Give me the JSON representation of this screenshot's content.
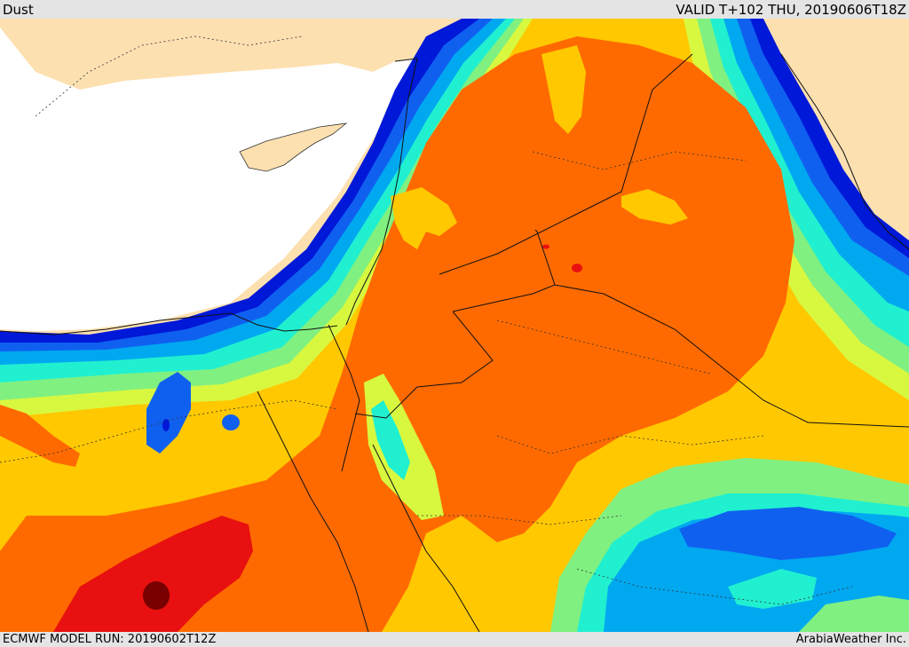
{
  "header": {
    "product_title": "Dust",
    "valid_time": "VALID T+102 THU, 20190606T18Z"
  },
  "footer": {
    "model_run": "ECMWF MODEL RUN: 20190602T12Z",
    "credit": "ArabiaWeather Inc."
  },
  "colors": {
    "land": "#fde0b0",
    "sea": "#ffffff",
    "dark_blue": "#0018d8",
    "blue": "#1060f0",
    "light_blue": "#00a8f0",
    "cyan": "#20f0d0",
    "green": "#80f080",
    "yellow_green": "#d8f840",
    "yellow": "#ffc800",
    "orange": "#ff6a00",
    "red": "#e81010",
    "dark_red": "#780000"
  }
}
